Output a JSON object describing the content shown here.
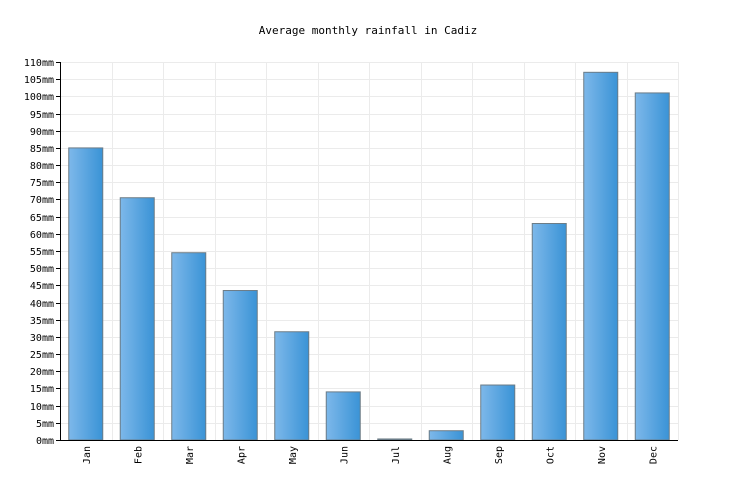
{
  "chart_data": {
    "type": "bar",
    "title": "Average monthly rainfall in Cadiz",
    "xlabel": "",
    "ylabel": "",
    "categories": [
      "Jan",
      "Feb",
      "Mar",
      "Apr",
      "May",
      "Jun",
      "Jul",
      "Aug",
      "Sep",
      "Oct",
      "Nov",
      "Dec"
    ],
    "values": [
      85,
      70.5,
      54.5,
      43.5,
      31.5,
      14,
      0.3,
      2.7,
      16,
      63,
      107,
      101
    ],
    "unit": "mm",
    "ylim": [
      0,
      110
    ],
    "ytick_step": 5,
    "grid": true,
    "legend": "none",
    "bar_color": "#4fa3e0",
    "bar_color_dark": "#3a8fd0",
    "bar_stroke": "#6b7b86",
    "grid_color": "#ebebeb"
  }
}
